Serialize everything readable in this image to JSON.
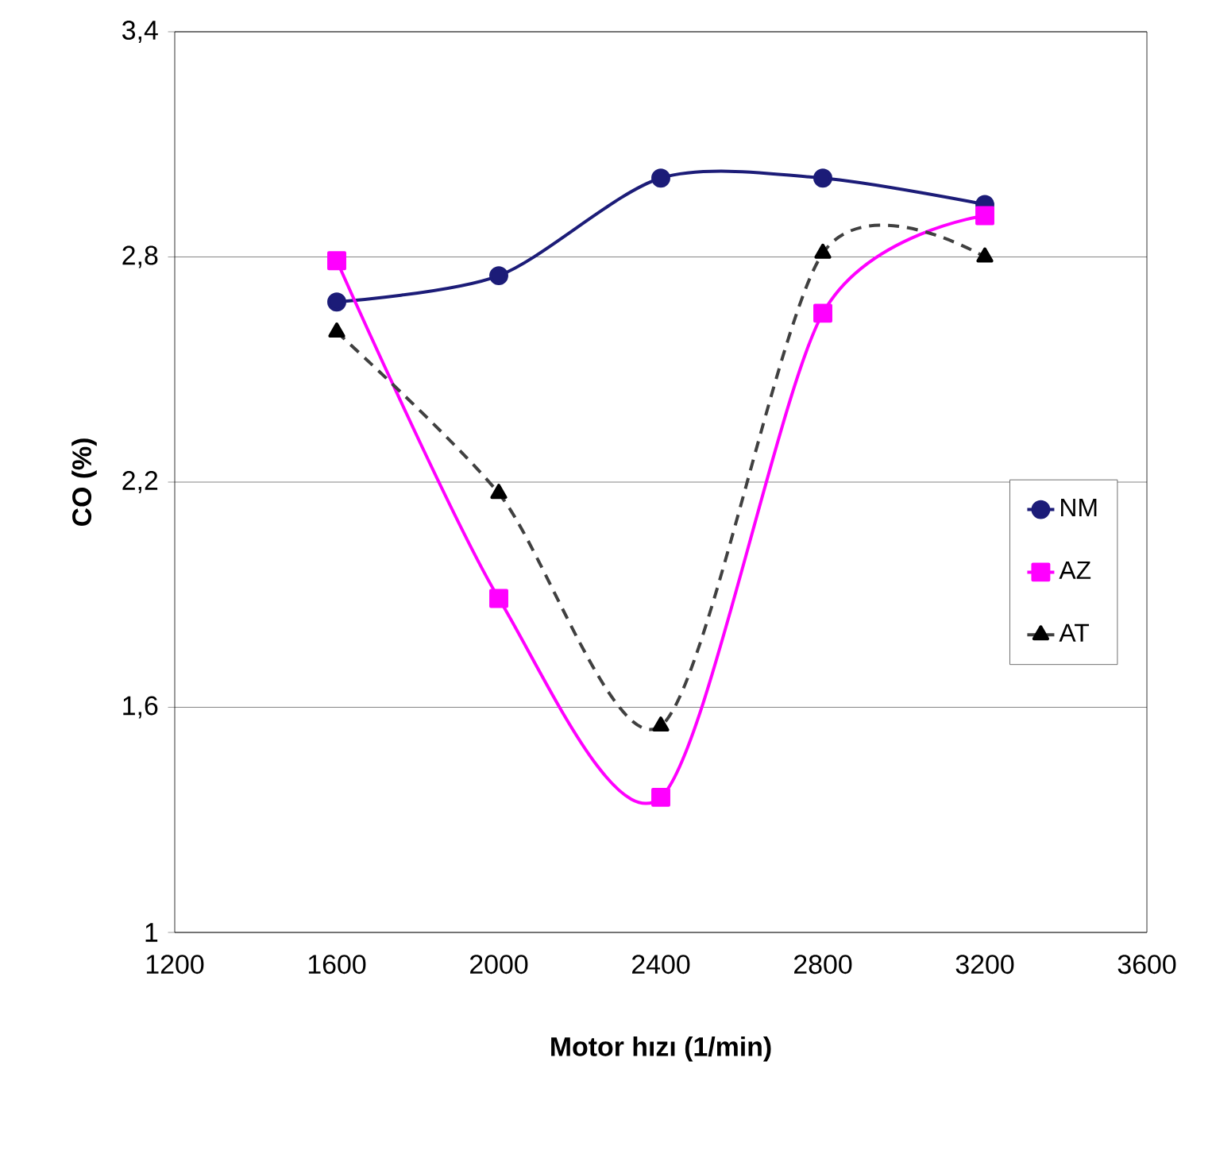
{
  "chart_data": {
    "type": "line",
    "xlabel": "Motor hızı (1/min)",
    "ylabel": "CO  (%)",
    "x": [
      1600,
      2000,
      2400,
      2800,
      3200
    ],
    "xlim": [
      1200,
      3600
    ],
    "xticks": [
      1200,
      1600,
      2000,
      2400,
      2800,
      3200,
      3600
    ],
    "ylim": [
      1,
      3.4
    ],
    "yticks": [
      1,
      {
        "value": 1.6,
        "label": "1,6"
      },
      {
        "value": 2.2,
        "label": "2,2"
      },
      {
        "value": 2.8,
        "label": "2,8"
      },
      {
        "value": 3.4,
        "label": "3,4"
      }
    ],
    "grid": "y",
    "legend": "right",
    "series": [
      {
        "name": "NM",
        "color": "#1c1c78",
        "marker": "circle",
        "line_style": "solid",
        "values": [
          2.68,
          2.75,
          3.01,
          3.01,
          2.94
        ]
      },
      {
        "name": "AZ",
        "color": "#ff00ff",
        "marker": "square",
        "line_style": "solid",
        "values": [
          2.79,
          1.89,
          1.36,
          2.65,
          2.91
        ]
      },
      {
        "name": "AT",
        "color": "#404040",
        "marker": "triangle",
        "line_style": "dashed",
        "values": [
          2.6,
          2.17,
          1.55,
          2.81,
          2.8
        ]
      }
    ]
  }
}
